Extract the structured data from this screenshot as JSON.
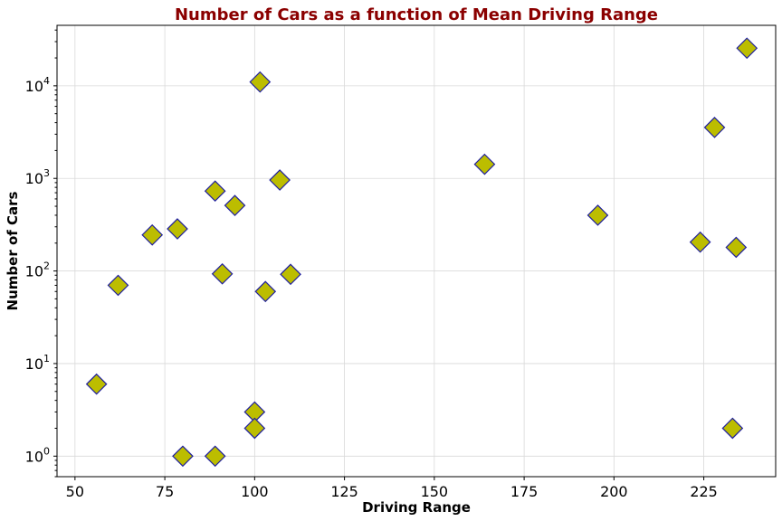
{
  "chart_data": {
    "type": "scatter",
    "title": "Number of Cars as a function of Mean Driving Range",
    "xlabel": "Driving Range",
    "ylabel": "Number of Cars",
    "xlim": [
      45,
      245
    ],
    "ylim": [
      0.6,
      45000
    ],
    "yscale": "log",
    "xticks": [
      50,
      75,
      100,
      125,
      150,
      175,
      200,
      225
    ],
    "yticks": [
      {
        "value": 1,
        "base": "10",
        "exp": "0"
      },
      {
        "value": 10,
        "base": "10",
        "exp": "1"
      },
      {
        "value": 100,
        "base": "10",
        "exp": "2"
      },
      {
        "value": 1000,
        "base": "10",
        "exp": "3"
      },
      {
        "value": 10000,
        "base": "10",
        "exp": "4"
      }
    ],
    "grid": true,
    "marker": "diamond",
    "marker_face_color": "#bcbd00",
    "marker_edge_color": "#1f1f9f",
    "title_color": "#8b0000",
    "points": [
      {
        "x": 56,
        "y": 6
      },
      {
        "x": 62,
        "y": 70
      },
      {
        "x": 71.5,
        "y": 245
      },
      {
        "x": 78.5,
        "y": 285
      },
      {
        "x": 80,
        "y": 1
      },
      {
        "x": 89,
        "y": 1
      },
      {
        "x": 89,
        "y": 730
      },
      {
        "x": 91,
        "y": 93
      },
      {
        "x": 94.5,
        "y": 510
      },
      {
        "x": 100,
        "y": 3
      },
      {
        "x": 100,
        "y": 2
      },
      {
        "x": 101.5,
        "y": 11000
      },
      {
        "x": 103,
        "y": 60
      },
      {
        "x": 107,
        "y": 960
      },
      {
        "x": 110,
        "y": 92
      },
      {
        "x": 164,
        "y": 1420
      },
      {
        "x": 195.5,
        "y": 400
      },
      {
        "x": 224,
        "y": 205
      },
      {
        "x": 228,
        "y": 3550
      },
      {
        "x": 233,
        "y": 2
      },
      {
        "x": 234,
        "y": 180
      },
      {
        "x": 237,
        "y": 25500
      }
    ]
  }
}
